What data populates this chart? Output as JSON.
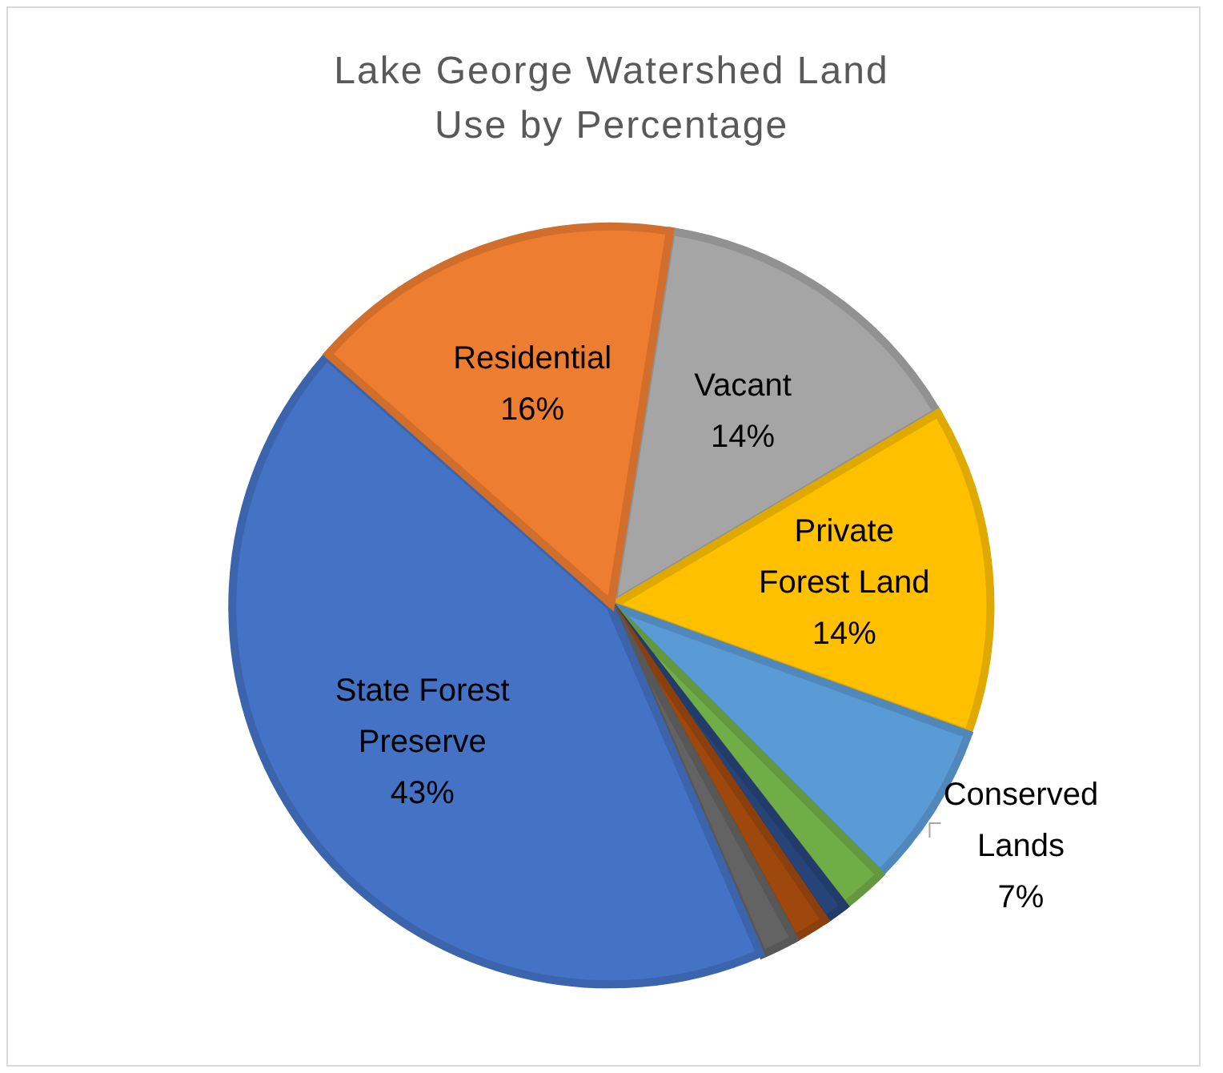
{
  "chart_data": {
    "type": "pie",
    "title": "Lake George Watershed Land Use by Percentage",
    "categories": [
      "Vacant",
      "Private Forest Land",
      "Conserved Lands",
      null,
      null,
      null,
      null,
      "State Forest Preserve",
      "Residential"
    ],
    "values": [
      14,
      14,
      7,
      2,
      1,
      1.5,
      1.5,
      43,
      16
    ],
    "value_labels": [
      "14%",
      "14%",
      "7%",
      null,
      null,
      null,
      null,
      "43%",
      "16%"
    ],
    "colors": [
      "#a5a5a5",
      "#ffc000",
      "#5b9bd5",
      "#70ad47",
      "#264478",
      "#9e480e",
      "#636363",
      "#4472c4",
      "#ed7d31"
    ],
    "legend": false
  }
}
